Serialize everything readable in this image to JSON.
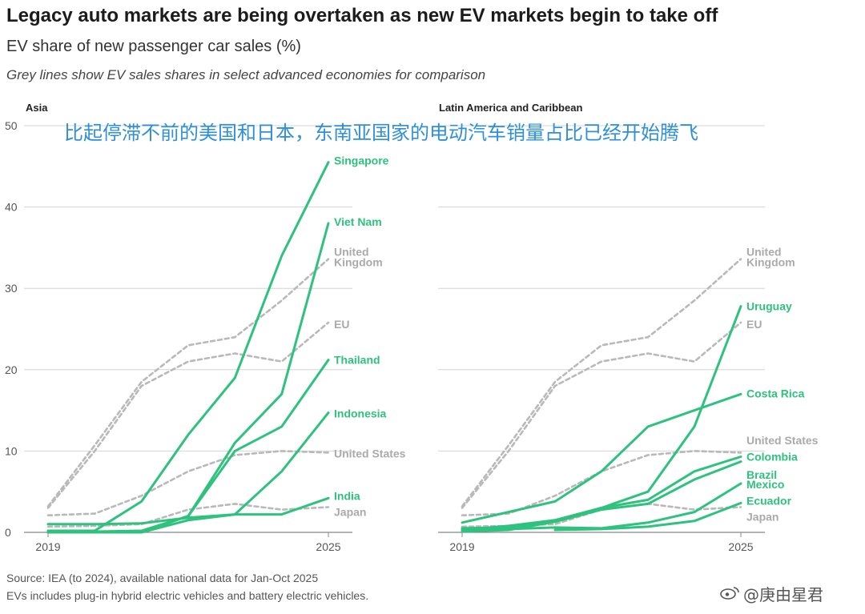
{
  "title": "Legacy auto markets are being overtaken as new EV markets begin to take off",
  "subtitle": "EV share of new passenger car sales (%)",
  "note": "Grey lines show EV sales shares in select advanced economies for comparison",
  "overlay_text": "比起停滞不前的美国和日本，东南亚国家的电动汽车销量占比已经开始腾飞",
  "source_line1": "Source: IEA (to 2024), available national data for Jan-Oct 2025",
  "source_line2": "EVs includes plug-in hybrid electric vehicles and battery electric vehicles.",
  "watermark": "@庚由星君",
  "colors": {
    "green": "#2ec27e",
    "grey": "#b9b9b9",
    "grid": "#d4d4d4"
  },
  "chart_data": [
    {
      "type": "line",
      "panel": "Asia",
      "ylim": [
        0,
        50
      ],
      "yticks": [
        "0",
        "10",
        "20",
        "30",
        "40",
        "50"
      ],
      "xticks": [
        "2019",
        "2025"
      ],
      "x": [
        2019,
        2020,
        2021,
        2022,
        2023,
        2024,
        2025
      ],
      "series": [
        {
          "name": "Singapore",
          "kind": "green",
          "values": [
            0.2,
            0.2,
            3.8,
            12,
            19,
            34,
            45.5
          ]
        },
        {
          "name": "Viet Nam",
          "kind": "green",
          "values": [
            0,
            0,
            0,
            2,
            11,
            17,
            38
          ]
        },
        {
          "name": "Thailand",
          "kind": "green",
          "values": [
            0.1,
            0.1,
            0.2,
            2,
            10,
            13,
            21.2
          ]
        },
        {
          "name": "Indonesia",
          "kind": "green",
          "values": [
            0,
            0,
            0,
            1.5,
            2.2,
            7.5,
            14.7
          ]
        },
        {
          "name": "India",
          "kind": "green",
          "values": [
            1,
            1,
            1.1,
            1.8,
            2.2,
            2.2,
            4.2
          ]
        },
        {
          "name": "United Kingdom",
          "kind": "grey",
          "values": [
            3.2,
            10.7,
            18.5,
            23,
            24,
            28.5,
            33.6
          ]
        },
        {
          "name": "EU",
          "kind": "grey",
          "values": [
            3,
            10,
            18,
            21,
            22,
            21,
            25.8
          ]
        },
        {
          "name": "United States",
          "kind": "grey",
          "values": [
            2.1,
            2.3,
            4.5,
            7.5,
            9.5,
            10,
            9.8
          ]
        },
        {
          "name": "Japan",
          "kind": "grey",
          "values": [
            0.7,
            0.8,
            1,
            2.8,
            3.5,
            2.8,
            3.1
          ]
        }
      ],
      "labels": [
        {
          "text": "Singapore",
          "kind": "green",
          "lines": [
            "Singapore"
          ],
          "y": 45.7
        },
        {
          "text": "Viet Nam",
          "kind": "green",
          "lines": [
            "Viet Nam"
          ],
          "y": 38.2
        },
        {
          "text": "United Kingdom",
          "kind": "grey",
          "lines": [
            "United",
            "Kingdom"
          ],
          "y": 34.5
        },
        {
          "text": "EU",
          "kind": "grey",
          "lines": [
            "EU"
          ],
          "y": 25.6
        },
        {
          "text": "Thailand",
          "kind": "green",
          "lines": [
            "Thailand"
          ],
          "y": 21.2
        },
        {
          "text": "Indonesia",
          "kind": "green",
          "lines": [
            "Indonesia"
          ],
          "y": 14.6
        },
        {
          "text": "United States",
          "kind": "grey",
          "lines": [
            "United States"
          ],
          "y": 9.7
        },
        {
          "text": "India",
          "kind": "green",
          "lines": [
            "India"
          ],
          "y": 4.5
        },
        {
          "text": "Japan",
          "kind": "grey",
          "lines": [
            "Japan"
          ],
          "y": 2.5
        }
      ]
    },
    {
      "type": "line",
      "panel": "Latin America and Caribbean",
      "ylim": [
        0,
        50
      ],
      "xticks": [
        "2019",
        "2025"
      ],
      "x": [
        2019,
        2020,
        2021,
        2022,
        2023,
        2024,
        2025
      ],
      "series": [
        {
          "name": "Uruguay",
          "kind": "green",
          "values": [
            0.5,
            0.6,
            1.5,
            3,
            5,
            13,
            27.8
          ]
        },
        {
          "name": "Costa Rica",
          "kind": "green",
          "values": [
            1.2,
            2.5,
            3.8,
            7.5,
            13,
            15,
            17
          ]
        },
        {
          "name": "Colombia",
          "kind": "green",
          "values": [
            0.3,
            0.8,
            1.5,
            3,
            4,
            7.5,
            9.3
          ]
        },
        {
          "name": "Brazil",
          "kind": "green",
          "values": [
            0.1,
            0.3,
            1.3,
            2.8,
            3.5,
            6.5,
            8.7
          ]
        },
        {
          "name": "Mexico",
          "kind": "green",
          "values": [
            0.3,
            0.4,
            0.6,
            0.5,
            1.2,
            2.5,
            6
          ]
        },
        {
          "name": "Ecuador",
          "kind": "green",
          "values": [
            null,
            null,
            0.3,
            0.4,
            0.7,
            1.4,
            3.6
          ]
        },
        {
          "name": "United Kingdom",
          "kind": "grey",
          "values": [
            3.2,
            10.7,
            18.5,
            23,
            24,
            28.5,
            33.6
          ]
        },
        {
          "name": "EU",
          "kind": "grey",
          "values": [
            3,
            10,
            18,
            21,
            22,
            21,
            25.8
          ]
        },
        {
          "name": "United States",
          "kind": "grey",
          "values": [
            2.1,
            2.3,
            4.5,
            7.5,
            9.5,
            10,
            9.8
          ]
        },
        {
          "name": "Japan",
          "kind": "grey",
          "values": [
            0.7,
            0.8,
            1,
            2.8,
            3.5,
            2.8,
            3.1
          ]
        }
      ],
      "labels": [
        {
          "text": "United Kingdom",
          "kind": "grey",
          "lines": [
            "United",
            "Kingdom"
          ],
          "y": 34.5
        },
        {
          "text": "Uruguay",
          "kind": "green",
          "lines": [
            "Uruguay"
          ],
          "y": 27.8
        },
        {
          "text": "EU",
          "kind": "grey",
          "lines": [
            "EU"
          ],
          "y": 25.6
        },
        {
          "text": "Costa Rica",
          "kind": "green",
          "lines": [
            "Costa Rica"
          ],
          "y": 17.1
        },
        {
          "text": "United States",
          "kind": "grey",
          "lines": [
            "United States"
          ],
          "y": 11.3
        },
        {
          "text": "Colombia",
          "kind": "green",
          "lines": [
            "Colombia"
          ],
          "y": 9.3
        },
        {
          "text": "Brazil",
          "kind": "green",
          "lines": [
            "Brazil"
          ],
          "y": 7.1
        },
        {
          "text": "Mexico",
          "kind": "green",
          "lines": [
            "Mexico"
          ],
          "y": 5.9
        },
        {
          "text": "Ecuador",
          "kind": "green",
          "lines": [
            "Ecuador"
          ],
          "y": 3.9
        },
        {
          "text": "Japan",
          "kind": "grey",
          "lines": [
            "Japan"
          ],
          "y": 1.9
        }
      ]
    }
  ]
}
